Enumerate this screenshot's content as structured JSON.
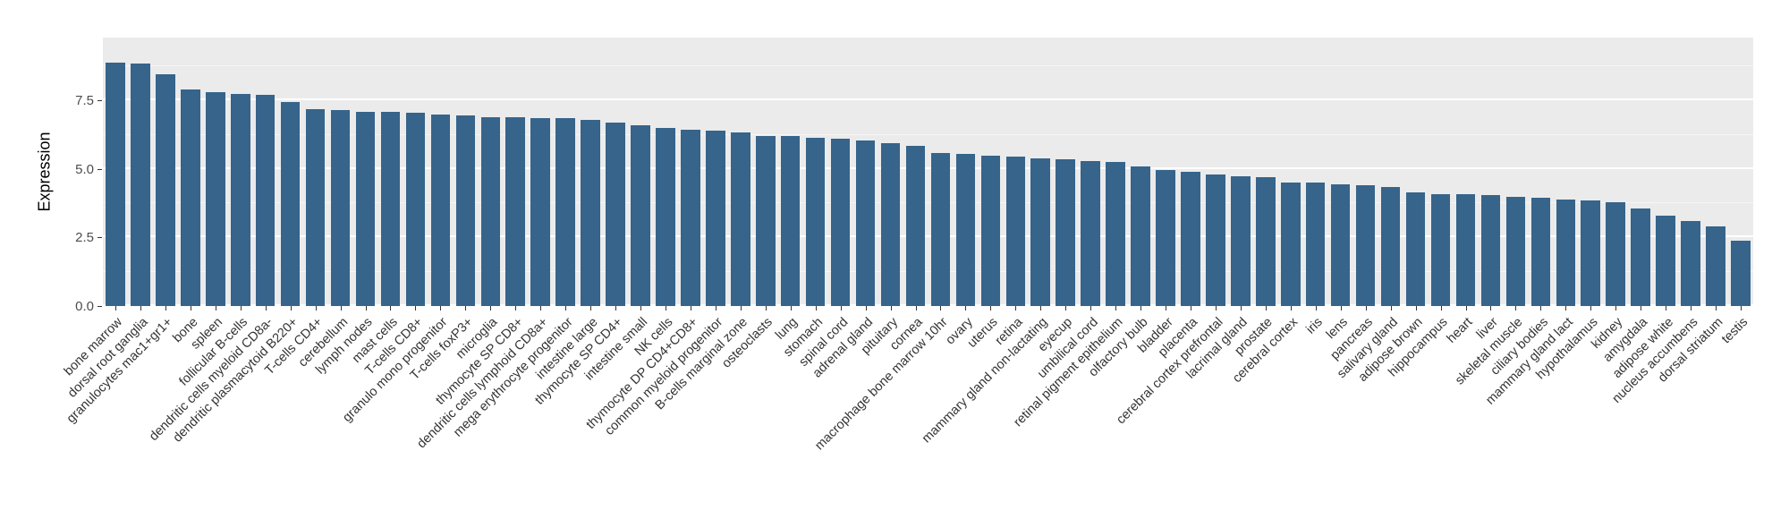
{
  "chart_data": {
    "type": "bar",
    "title": "",
    "xlabel": "",
    "ylabel": "Expression",
    "ylim": [
      0,
      9.8
    ],
    "yticks": [
      0.0,
      2.5,
      5.0,
      7.5
    ],
    "ytick_labels": [
      "0.0",
      "2.5",
      "5.0",
      "7.5"
    ],
    "yticks_minor": [
      1.25,
      3.75,
      6.25,
      8.75
    ],
    "grid": true,
    "legend": "none",
    "bar_color": "#36648B",
    "panel_color": "#EBEBEB",
    "grid_color": "#FFFFFF",
    "background_color": "#FFFFFF",
    "categories": [
      "bone marrow",
      "dorsal root ganglia",
      "granulocytes mac1+gr1+",
      "bone",
      "spleen",
      "follicular B-cells",
      "dendritic cells myeloid CD8a-",
      "dendritic plasmacytoid B220+",
      "T-cells CD4+",
      "cerebellum",
      "lymph nodes",
      "mast cells",
      "T-cells CD8+",
      "granulo mono progenitor",
      "T-cells foxP3+",
      "microglia",
      "thymocyte SP CD8+",
      "dendritic cells lymphoid CD8a+",
      "mega erythrocyte progenitor",
      "intestine large",
      "thymocyte SP CD4+",
      "intestine small",
      "NK cells",
      "thymocyte DP CD4+CD8+",
      "common myeloid progenitor",
      "B-cells marginal zone",
      "osteoclasts",
      "lung",
      "stomach",
      "spinal cord",
      "adrenal gland",
      "pituitary",
      "cornea",
      "macrophage bone marrow 10hr",
      "ovary",
      "uterus",
      "retina",
      "mammary gland non-lactating",
      "eyecup",
      "umbilical cord",
      "retinal pigment epithelium",
      "olfactory bulb",
      "bladder",
      "placenta",
      "cerebral cortex prefrontal",
      "lacrimal gland",
      "prostate",
      "cerebral cortex",
      "iris",
      "lens",
      "pancreas",
      "salivary gland",
      "adipose brown",
      "hippocampus",
      "heart",
      "liver",
      "skeletal muscle",
      "ciliary bodies",
      "mammary gland lact",
      "hypothalamus",
      "kidney",
      "amygdala",
      "adipose white",
      "nucleus accumbens",
      "dorsal striatum",
      "testis"
    ],
    "values": [
      8.9,
      8.85,
      8.45,
      7.9,
      7.8,
      7.75,
      7.7,
      7.45,
      7.2,
      7.15,
      7.1,
      7.1,
      7.05,
      7.0,
      6.95,
      6.9,
      6.9,
      6.85,
      6.85,
      6.8,
      6.7,
      6.6,
      6.5,
      6.45,
      6.4,
      6.35,
      6.2,
      6.2,
      6.15,
      6.1,
      6.05,
      5.95,
      5.85,
      5.6,
      5.55,
      5.5,
      5.45,
      5.4,
      5.35,
      5.3,
      5.25,
      5.1,
      4.95,
      4.9,
      4.8,
      4.75,
      4.7,
      4.5,
      4.5,
      4.45,
      4.4,
      4.35,
      4.15,
      4.1,
      4.1,
      4.05,
      4.0,
      3.95,
      3.9,
      3.85,
      3.8,
      3.55,
      3.3,
      3.1,
      2.9,
      2.4
    ]
  }
}
